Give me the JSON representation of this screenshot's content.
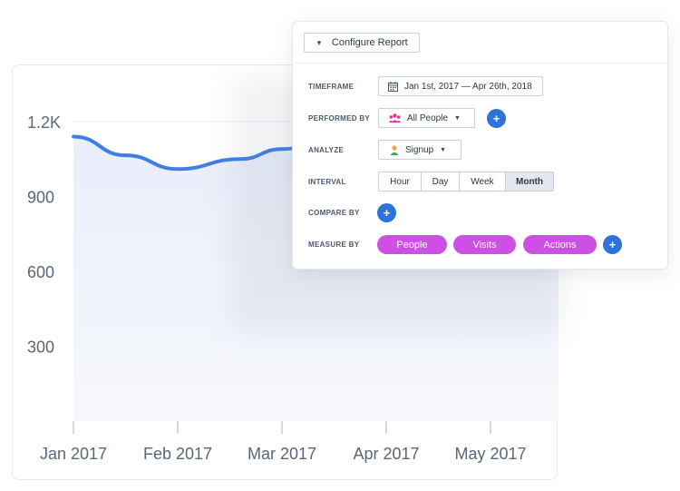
{
  "chart_data": {
    "type": "area",
    "x_ticks": [
      "Jan 2017",
      "Feb 2017",
      "Mar 2017",
      "Apr 2017",
      "May 2017"
    ],
    "y_ticks": [
      "1.2K",
      "900",
      "600",
      "300"
    ],
    "ylim": [
      0,
      1200
    ],
    "grid": true,
    "series": [
      {
        "points": [
          [
            0,
            1140
          ],
          [
            0.5,
            1065
          ],
          [
            1,
            1010
          ],
          [
            1.6,
            1050
          ],
          [
            2,
            1090
          ],
          [
            2.2,
            1095
          ]
        ]
      }
    ],
    "colors": {
      "line": "#3d7fe6",
      "fill": "#e8eefb",
      "grid": "#e9ecf1",
      "tick_text": "#5b6676"
    }
  },
  "panel": {
    "configure_label": "Configure Report",
    "timeframe_label": "TIMEFRAME",
    "timeframe_value": "Jan 1st, 2017 — Apr 26th, 2018",
    "performed_by_label": "PERFORMED BY",
    "performed_by_value": "All People",
    "analyze_label": "ANALYZE",
    "analyze_value": "Signup",
    "interval_label": "INTERVAL",
    "interval_options": [
      "Hour",
      "Day",
      "Week",
      "Month"
    ],
    "interval_selected": "Month",
    "compare_by_label": "COMPARE BY",
    "measure_by_label": "MEASURE BY",
    "measure_pills": [
      "People",
      "Visits",
      "Actions"
    ],
    "plus_glyph": "+",
    "accent_color": "#2e73d8",
    "pill_color": "#cd4fe4",
    "icons": [
      "chevron-down-icon",
      "calendar-icon",
      "people-icon",
      "person-icon",
      "plus-icon"
    ]
  }
}
